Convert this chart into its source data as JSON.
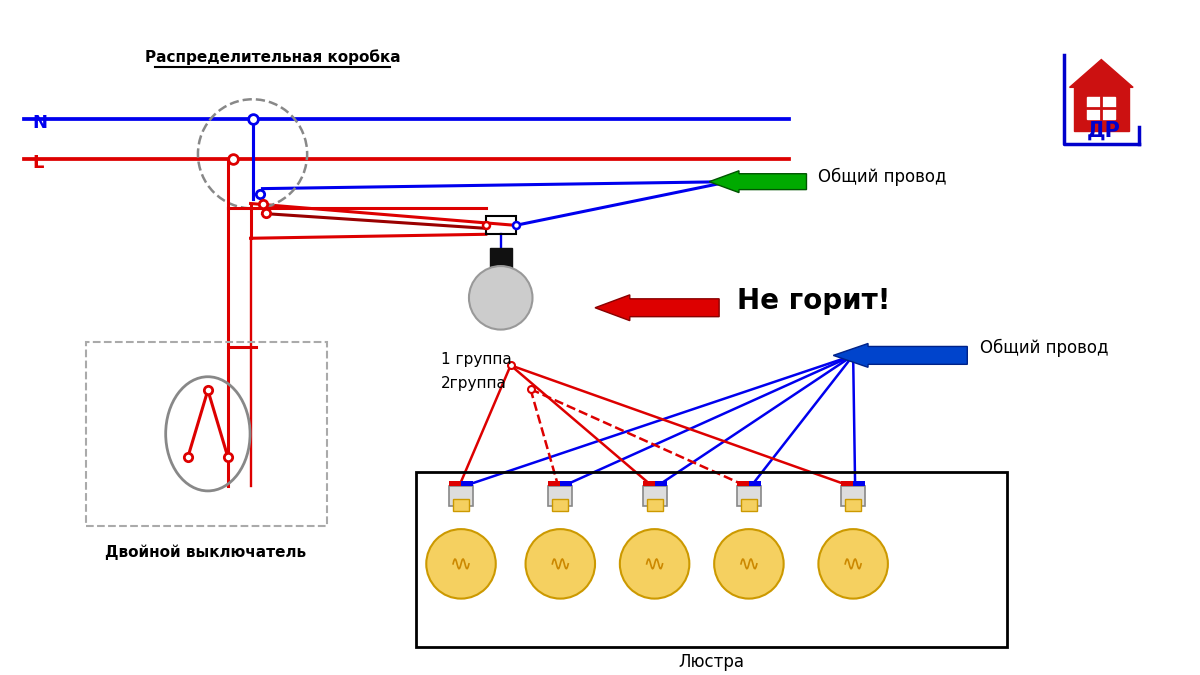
{
  "bg_color": "#ffffff",
  "N_label": "N",
  "L_label": "L",
  "box_label": "Распределительная коробка",
  "common_wire_label1": "Общий провод",
  "common_wire_label2": "Общий провод",
  "not_glow_label": "Не горит!",
  "switch_label": "Двойной выключатель",
  "chandelier_label": "Люстра",
  "group1_label": "1 группа",
  "group2_label": "2группа",
  "blue": "#0000ee",
  "red": "#dd0000",
  "green": "#00aa00",
  "gray": "#888888",
  "lgray": "#aaaaaa",
  "black": "#000000",
  "dark_red": "#990000"
}
